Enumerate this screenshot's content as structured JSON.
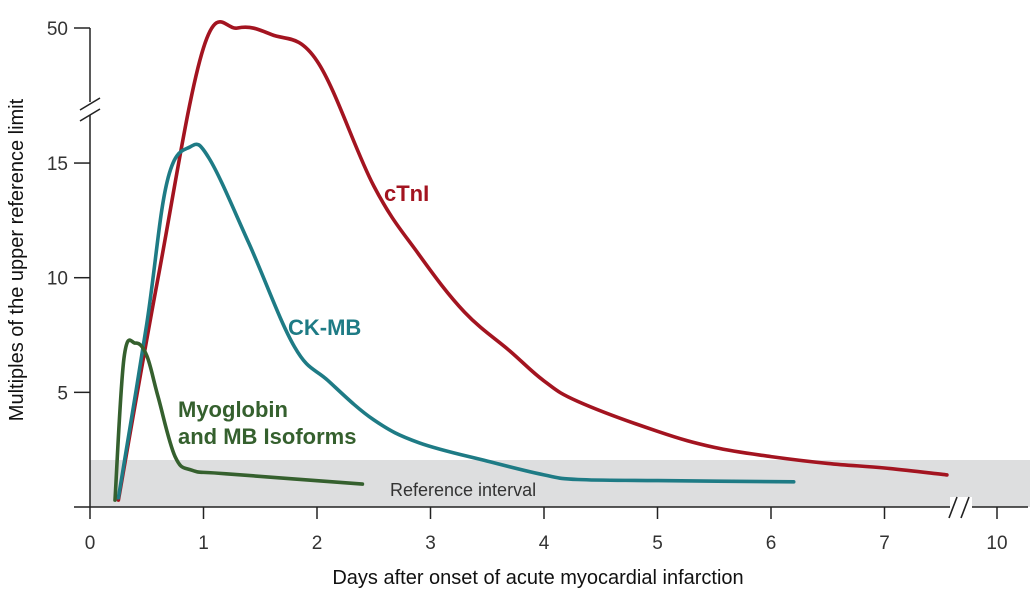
{
  "chart_data": {
    "type": "line",
    "xlabel": "Days after onset of acute myocardial infarction",
    "ylabel": "Multiples of the upper reference limit",
    "x_ticks": [
      "0",
      "1",
      "2",
      "3",
      "4",
      "5",
      "6",
      "7",
      "10"
    ],
    "y_ticks": [
      "5",
      "10",
      "15",
      "50"
    ],
    "y_axis_break": true,
    "x_axis_break": true,
    "reference_interval": {
      "label": "Reference interval",
      "y_range": [
        0,
        2
      ],
      "color": "#dddedf"
    },
    "series": [
      {
        "name": "cTnI",
        "label_lines": [
          "cTnI"
        ],
        "color": "#a31420",
        "points": [
          [
            0.25,
            0.3
          ],
          [
            0.6,
            10
          ],
          [
            1.0,
            44
          ],
          [
            1.3,
            50
          ],
          [
            1.6,
            48
          ],
          [
            2.0,
            40
          ],
          [
            2.5,
            14.0
          ],
          [
            2.9,
            11.0
          ],
          [
            3.3,
            8.5
          ],
          [
            3.7,
            6.8
          ],
          [
            4.0,
            5.5
          ],
          [
            4.3,
            4.6
          ],
          [
            5.0,
            3.3
          ],
          [
            5.5,
            2.6
          ],
          [
            6.0,
            2.2
          ],
          [
            6.5,
            1.9
          ],
          [
            7.0,
            1.7
          ],
          [
            7.55,
            1.4
          ]
        ]
      },
      {
        "name": "CK-MB",
        "label_lines": [
          "CK-MB"
        ],
        "color": "#1e7b85",
        "points": [
          [
            0.25,
            0.4
          ],
          [
            0.5,
            8.0
          ],
          [
            0.68,
            14.2
          ],
          [
            0.88,
            15.7
          ],
          [
            1.05,
            15.2
          ],
          [
            1.4,
            11.5
          ],
          [
            1.8,
            7.0
          ],
          [
            2.1,
            5.5
          ],
          [
            2.5,
            3.8
          ],
          [
            2.9,
            2.8
          ],
          [
            3.5,
            2.0
          ],
          [
            4.0,
            1.4
          ],
          [
            4.3,
            1.2
          ],
          [
            5.0,
            1.15
          ],
          [
            6.2,
            1.1
          ]
        ]
      },
      {
        "name": "Myoglobin and MB Isoforms",
        "label_lines": [
          "Myoglobin",
          "and MB Isoforms"
        ],
        "color": "#35602e",
        "points": [
          [
            0.22,
            0.3
          ],
          [
            0.3,
            6.5
          ],
          [
            0.4,
            7.15
          ],
          [
            0.5,
            6.6
          ],
          [
            0.6,
            4.8
          ],
          [
            0.75,
            2.2
          ],
          [
            0.9,
            1.6
          ],
          [
            1.2,
            1.45
          ],
          [
            2.4,
            1.0
          ]
        ]
      }
    ]
  }
}
